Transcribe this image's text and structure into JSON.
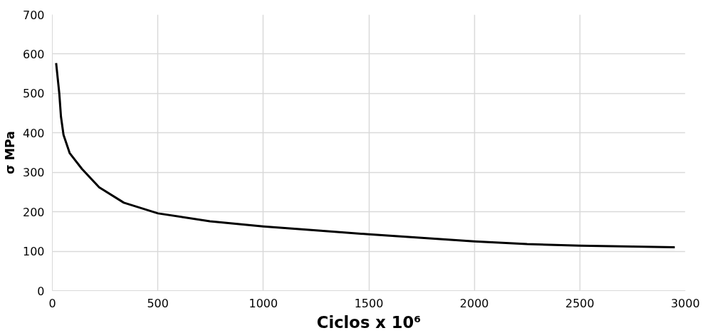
{
  "chart_data": {
    "type": "line",
    "xlabel": "Ciclos x 10⁶",
    "ylabel": "σ MPa",
    "x": [
      18,
      33,
      41,
      53,
      82,
      140,
      222,
      339,
      501,
      747,
      1000,
      1250,
      1500,
      1750,
      2000,
      2250,
      2500,
      2750,
      2950
    ],
    "series": [
      {
        "color": "#000000",
        "values": [
          577,
          500,
          441,
          395,
          349,
          309,
          262,
          223,
          196,
          176,
          163,
          153,
          143,
          134,
          125,
          118,
          114,
          112,
          110
        ]
      }
    ],
    "xlim": [
      0,
      3000
    ],
    "xticks": [
      0,
      500,
      1000,
      1500,
      2000,
      2500,
      3000
    ],
    "ylim": [
      0,
      700
    ],
    "yticks": [
      0,
      100,
      200,
      300,
      400,
      500,
      600,
      700
    ],
    "grid": true,
    "line_style": "solid"
  }
}
